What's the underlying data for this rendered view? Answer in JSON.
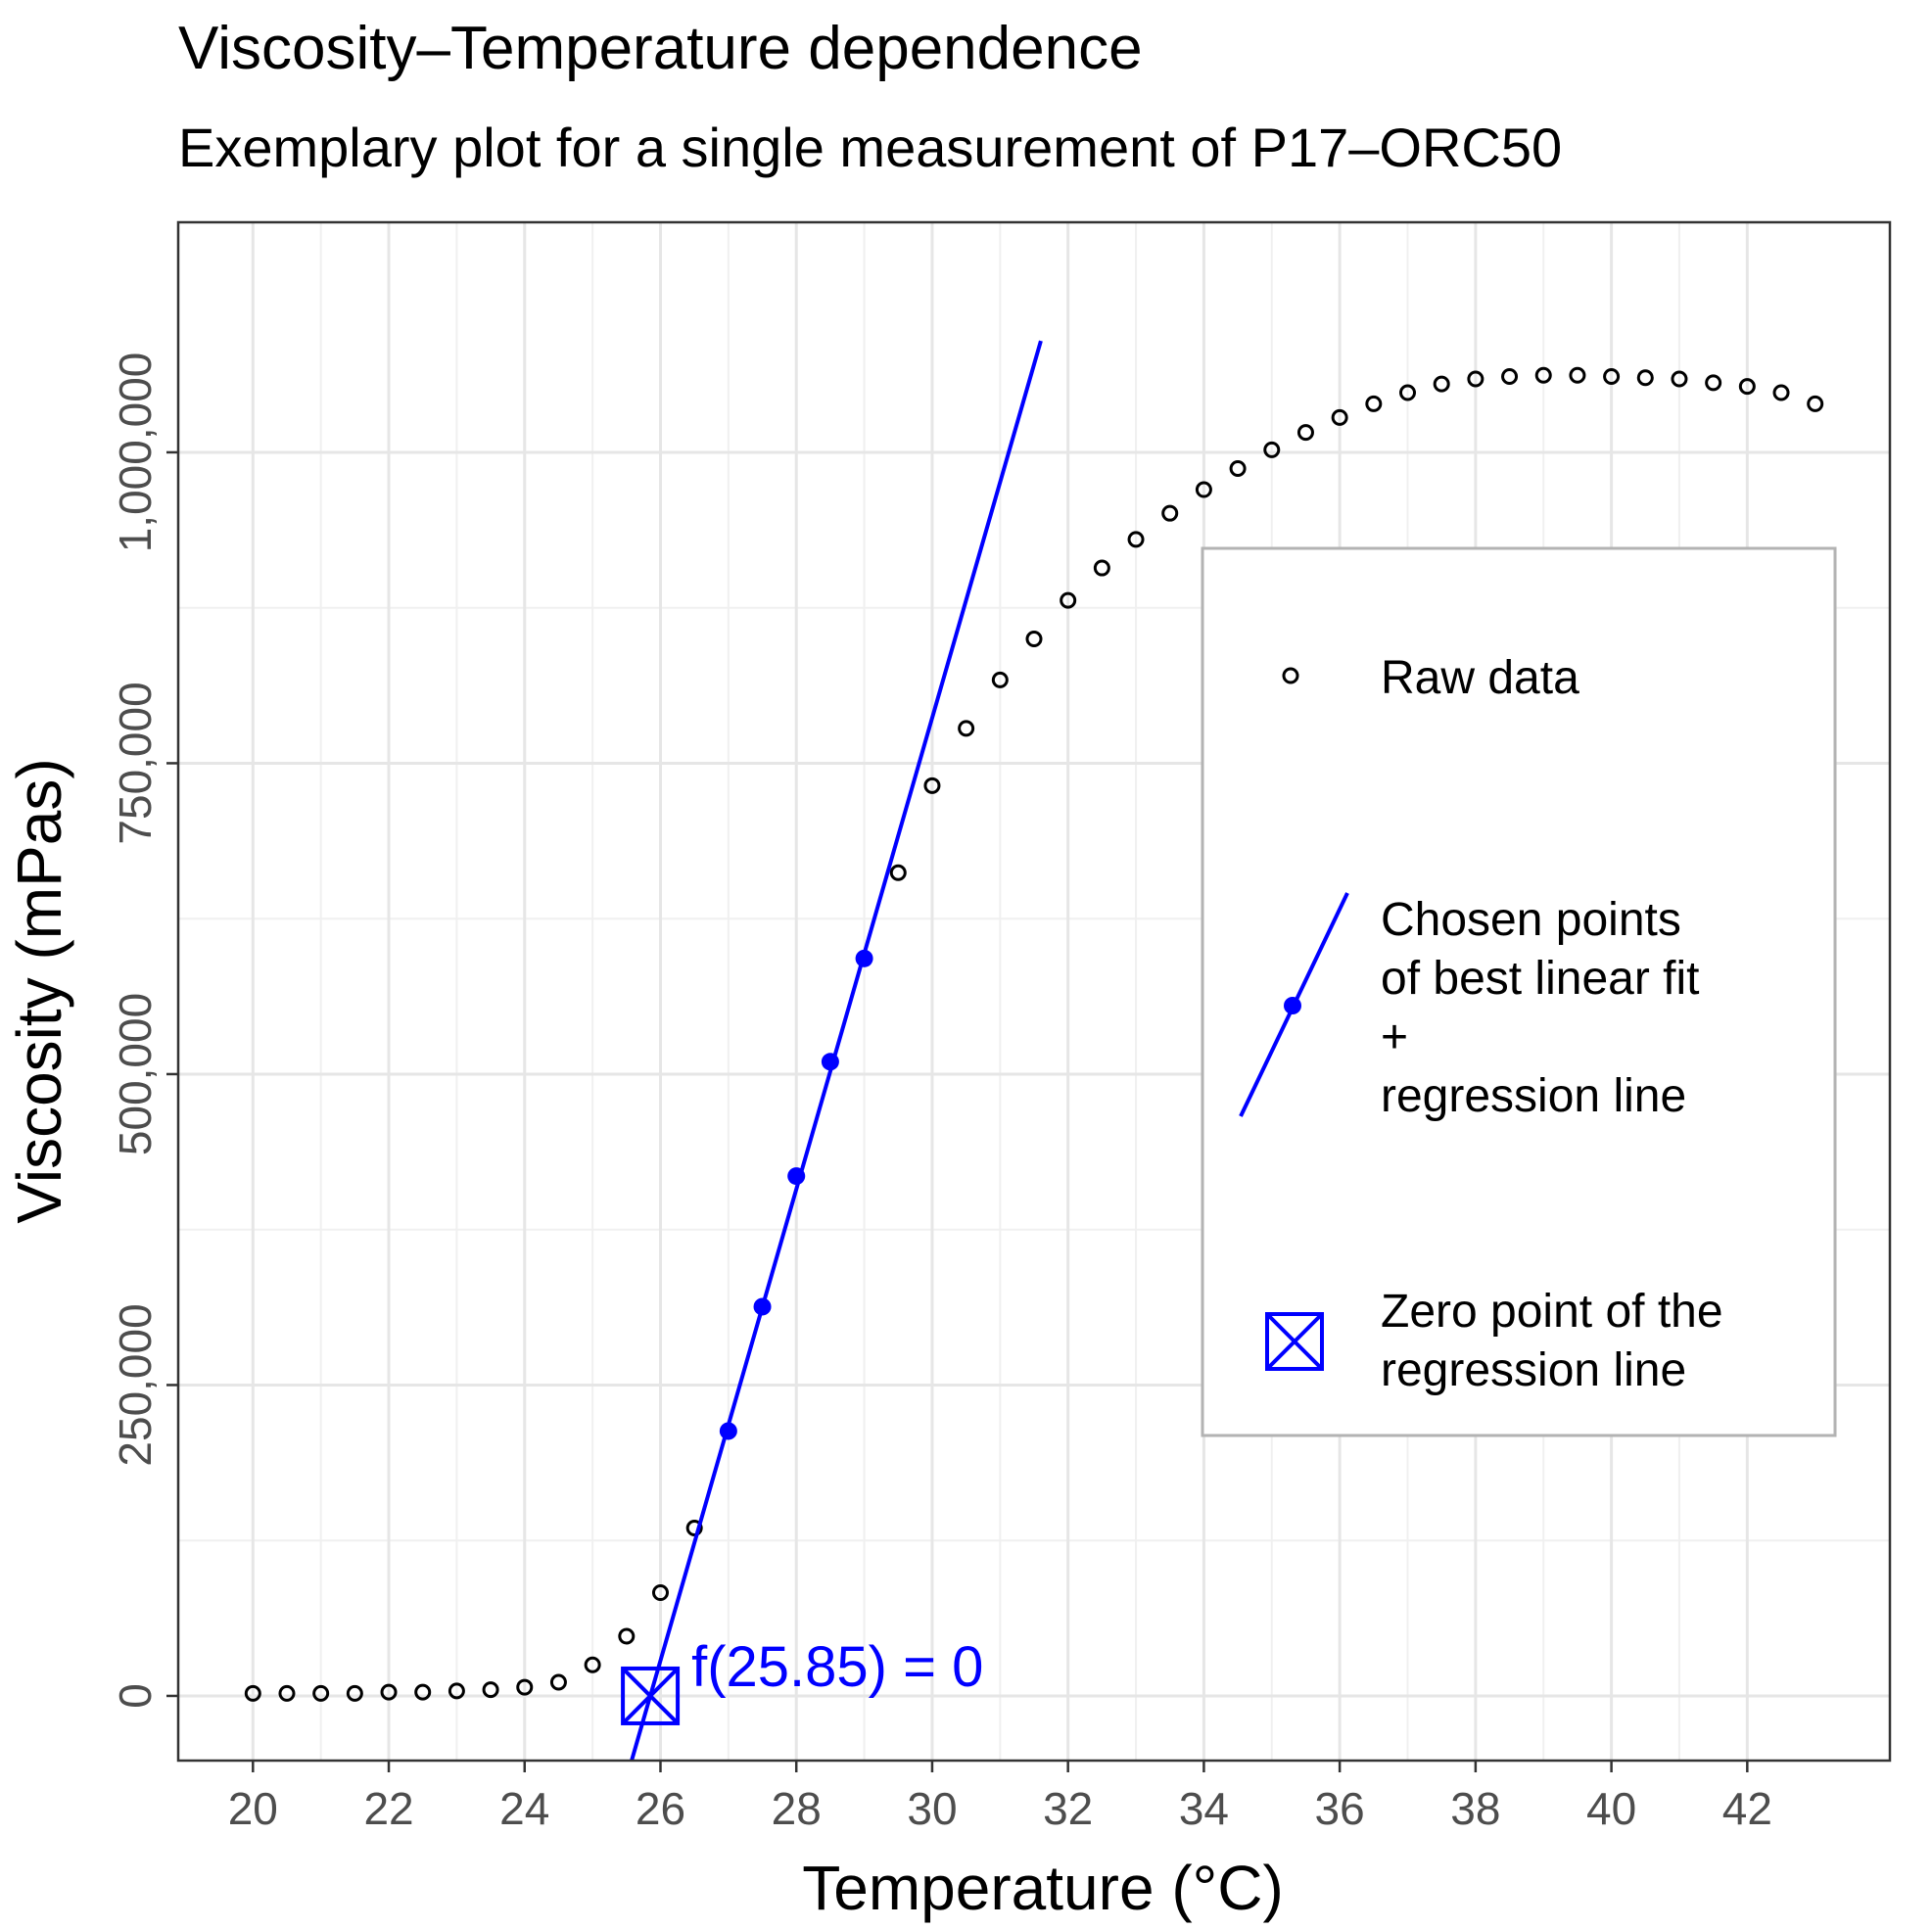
{
  "chart_data": {
    "type": "scatter",
    "title": "Viscosity–Temperature dependence",
    "subtitle": "Exemplary plot for a single measurement of P17–ORC50",
    "xlabel": "Temperature (°C)",
    "ylabel": "Viscosity (mPas)",
    "xlim": [
      18.9,
      44.1
    ],
    "ylim": [
      -52000,
      1185000
    ],
    "x_ticks": [
      20,
      22,
      24,
      26,
      28,
      30,
      32,
      34,
      36,
      38,
      40,
      42
    ],
    "x_tick_labels": [
      "20",
      "22",
      "24",
      "26",
      "28",
      "30",
      "32",
      "34",
      "36",
      "38",
      "40",
      "42"
    ],
    "y_ticks": [
      0,
      250000,
      500000,
      750000,
      1000000
    ],
    "y_tick_labels": [
      "0",
      "250,000",
      "500,000",
      "750,000",
      "1,000,000"
    ],
    "grid": true,
    "legend_position": "right",
    "series": [
      {
        "name": "Raw data",
        "type": "scatter",
        "marker": "open-circle",
        "color": "#000000",
        "x": [
          20,
          20.5,
          21,
          21.5,
          22,
          22.5,
          23,
          23.5,
          24,
          24.5,
          25,
          25.5,
          26,
          26.5,
          29.5,
          30,
          30.5,
          31,
          31.5,
          32,
          32.5,
          33,
          33.5,
          34,
          34.5,
          35,
          35.5,
          36,
          36.5,
          37,
          37.5,
          38,
          38.5,
          39,
          39.5,
          40,
          40.5,
          41,
          41.5,
          42,
          42.5,
          43
        ],
        "y": [
          2000,
          2000,
          2000,
          2000,
          3000,
          3000,
          4000,
          5000,
          7000,
          11000,
          25000,
          48000,
          83000,
          135000,
          662000,
          732000,
          778000,
          817000,
          850000,
          881000,
          907000,
          930000,
          951000,
          970000,
          987000,
          1002000,
          1016000,
          1028000,
          1039000,
          1048000,
          1055000,
          1059000,
          1061000,
          1062000,
          1062000,
          1061000,
          1060000,
          1059000,
          1056000,
          1053000,
          1048000,
          1039000
        ]
      },
      {
        "name": "Chosen points of best linear fit + regression line",
        "type": "scatter",
        "marker": "filled-circle",
        "color": "#0000ff",
        "x": [
          27,
          27.5,
          28,
          28.5,
          29
        ],
        "y": [
          213000,
          313000,
          418000,
          510000,
          593000
        ]
      }
    ],
    "regression_line": {
      "color": "#0000ff",
      "slope": 189500,
      "zero_point": 25.85,
      "x_range": [
        25.5,
        31.6
      ]
    },
    "zero_point_marker": {
      "x": 25.85,
      "y": 0,
      "color": "#0000ff",
      "label": "f(25.85) = 0"
    },
    "legend": [
      {
        "key": "raw",
        "label_lines": [
          "Raw data"
        ]
      },
      {
        "key": "fit",
        "label_lines": [
          "Chosen points",
          "of best linear fit",
          "+",
          "regression line"
        ]
      },
      {
        "key": "zero",
        "label_lines": [
          "Zero point of the",
          "regression line"
        ]
      }
    ]
  }
}
